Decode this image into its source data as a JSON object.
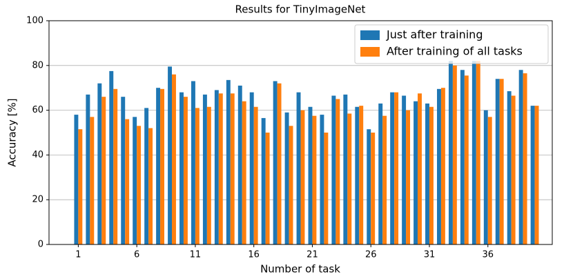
{
  "chart_data": {
    "type": "bar",
    "title": "Results for TinyImageNet",
    "xlabel": "Number of task",
    "ylabel": "Accuracy [%]",
    "x": [
      1,
      2,
      3,
      4,
      5,
      6,
      7,
      8,
      9,
      10,
      11,
      12,
      13,
      14,
      15,
      16,
      17,
      18,
      19,
      20,
      21,
      22,
      23,
      24,
      25,
      26,
      27,
      28,
      29,
      30,
      31,
      32,
      33,
      34,
      35,
      36,
      37,
      38,
      39,
      40
    ],
    "series": [
      {
        "name": "Just after training",
        "color": "#1f77b4",
        "values": [
          58,
          67,
          72,
          77.5,
          66,
          57,
          61,
          70,
          79.5,
          68,
          73,
          67,
          69,
          73.5,
          71,
          68,
          56.5,
          73,
          59,
          68,
          61.5,
          58,
          66.5,
          67,
          61.5,
          51.5,
          63,
          68,
          66.5,
          64,
          63,
          69.5,
          82,
          78,
          82,
          60,
          74,
          68.5,
          78,
          62
        ]
      },
      {
        "name": "After training of all tasks",
        "color": "#ff7f0e",
        "values": [
          51.5,
          57,
          66,
          69.5,
          56,
          53,
          52,
          69.5,
          76,
          66,
          61,
          61.5,
          67.5,
          67.5,
          64,
          61.5,
          50,
          72,
          53,
          60,
          57.5,
          50,
          65,
          58.5,
          62,
          50,
          57.5,
          68,
          60,
          67.5,
          61.5,
          70,
          80,
          75.5,
          82,
          57,
          74,
          66.5,
          76.5,
          62
        ]
      }
    ],
    "xlim": [
      -1.5,
      41.5
    ],
    "xticks": [
      1,
      6,
      11,
      16,
      21,
      26,
      31,
      36
    ],
    "ylim": [
      0,
      100
    ],
    "yticks": [
      0,
      20,
      40,
      60,
      80,
      100
    ],
    "grid": true,
    "legend": "upper right"
  }
}
